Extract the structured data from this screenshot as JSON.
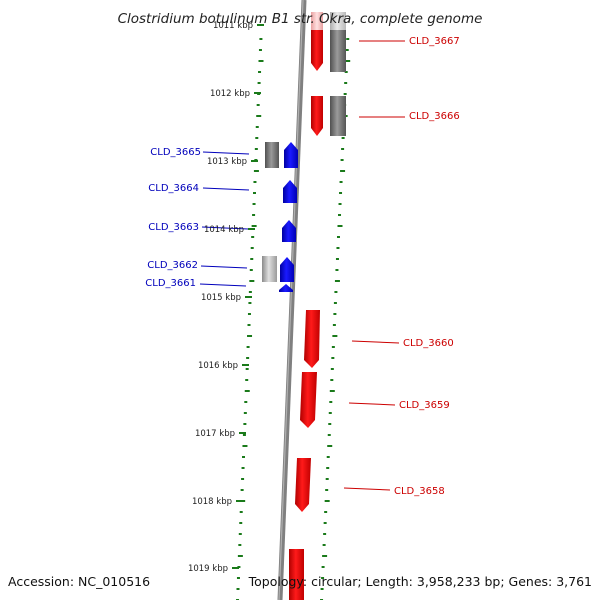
{
  "title": "Clostridium botulinum B1 str. Okra, complete genome",
  "footer": {
    "accession": "Accession: NC_010516",
    "topology": "Topology: circular; Length: 3,958,233 bp; Genes: 3,761"
  },
  "ticks": [
    {
      "label": "1011 kbp"
    },
    {
      "label": "1012 kbp"
    },
    {
      "label": "1013 kbp"
    },
    {
      "label": "1014 kbp"
    },
    {
      "label": "1015 kbp"
    },
    {
      "label": "1016 kbp"
    },
    {
      "label": "1017 kbp"
    },
    {
      "label": "1018 kbp"
    },
    {
      "label": "1019 kbp"
    }
  ],
  "genes_forward": [
    {
      "label": "CLD_3667",
      "color": "#cc0000"
    },
    {
      "label": "CLD_3666",
      "color": "#cc0000"
    },
    {
      "label": "CLD_3660",
      "color": "#cc0000"
    },
    {
      "label": "CLD_3659",
      "color": "#cc0000"
    },
    {
      "label": "CLD_3658",
      "color": "#cc0000"
    }
  ],
  "genes_reverse": [
    {
      "label": "CLD_3665",
      "color": "#0000bb"
    },
    {
      "label": "CLD_3664",
      "color": "#0000bb"
    },
    {
      "label": "CLD_3663",
      "color": "#0000bb"
    },
    {
      "label": "CLD_3662",
      "color": "#0000bb"
    },
    {
      "label": "CLD_3661",
      "color": "#0000bb"
    }
  ],
  "colors": {
    "backbone": "#808080",
    "forward_gene": "#ff0000",
    "reverse_gene": "#0000ff",
    "gc_track": "#1a7a1a",
    "other_feature": "#6e6e6e"
  }
}
